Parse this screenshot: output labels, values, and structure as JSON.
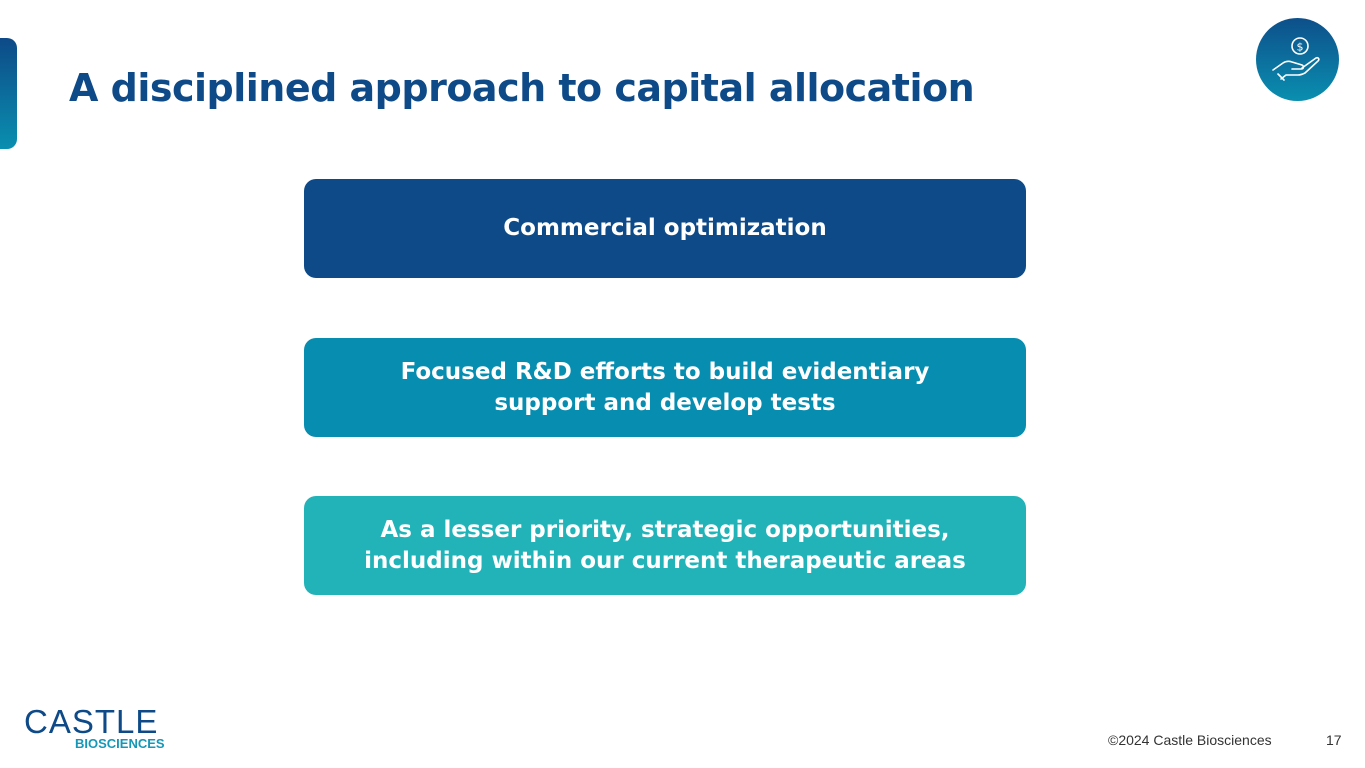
{
  "slide": {
    "title": "A disciplined approach to capital allocation",
    "icon": "hand-holding-dollar-icon",
    "priorities": [
      {
        "text": "Commercial optimization",
        "color": "#0d4a87"
      },
      {
        "text": "Focused R&D efforts to build evidentiary support and develop tests",
        "color": "#068daf"
      },
      {
        "text": "As a lesser priority, strategic opportunities, including within our current therapeutic areas",
        "color": "#22b3b9"
      }
    ]
  },
  "logo": {
    "main": "CASTLE",
    "sub": "BIOSCIENCES"
  },
  "footer": {
    "copyright": "©2024 Castle Biosciences",
    "page_number": "17"
  }
}
